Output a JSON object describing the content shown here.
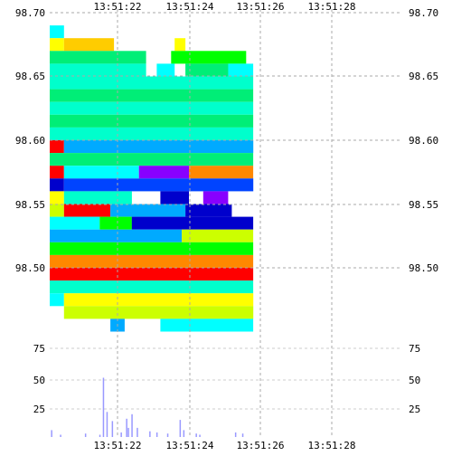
{
  "chart_data": [
    {
      "type": "heatmap",
      "title": "",
      "xlabel": "",
      "ylabel": "",
      "x_ticks": [
        "13:51:22",
        "13:51:24",
        "13:51:26",
        "13:51:28"
      ],
      "y_ticks": [
        "98.70",
        "98.65",
        "98.60",
        "98.55",
        "98.50"
      ],
      "ylim": [
        98.455,
        98.7
      ],
      "xlim_seconds_from_first_tick": [
        -1.9,
        2.0
      ],
      "grid": true,
      "color_scale": [
        "#ff0000",
        "#ff8800",
        "#ffcc00",
        "#ffff00",
        "#ccff00",
        "#00ff00",
        "#00ee77",
        "#00ffcc",
        "#00ffff",
        "#00aaff",
        "#0044ff",
        "#0000cc",
        "#8800ff"
      ],
      "levels": [
        {
          "price": 98.695,
          "segments": []
        },
        {
          "price": 98.685,
          "segments": [
            [
              -1.9,
              -1.5,
              8
            ]
          ]
        },
        {
          "price": 98.675,
          "segments": [
            [
              -1.9,
              -1.5,
              3
            ],
            [
              -1.5,
              -0.1,
              2
            ],
            [
              1.6,
              1.9,
              3
            ]
          ]
        },
        {
          "price": 98.665,
          "segments": [
            [
              -1.9,
              0.8,
              6
            ],
            [
              1.5,
              3.6,
              5
            ]
          ]
        },
        {
          "price": 98.655,
          "segments": [
            [
              -1.9,
              0.8,
              7
            ],
            [
              1.1,
              1.6,
              8
            ],
            [
              1.9,
              3.1,
              6
            ],
            [
              3.1,
              3.8,
              8
            ]
          ]
        },
        {
          "price": 98.645,
          "segments": [
            [
              -1.9,
              3.8,
              7
            ]
          ]
        },
        {
          "price": 98.635,
          "segments": [
            [
              -1.9,
              3.8,
              6
            ]
          ]
        },
        {
          "price": 98.625,
          "segments": [
            [
              -1.9,
              3.8,
              7
            ]
          ]
        },
        {
          "price": 98.615,
          "segments": [
            [
              -1.9,
              3.8,
              6
            ]
          ]
        },
        {
          "price": 98.605,
          "segments": [
            [
              -1.9,
              3.8,
              7
            ]
          ]
        },
        {
          "price": 98.595,
          "segments": [
            [
              -1.9,
              -1.5,
              0
            ],
            [
              -1.5,
              3.8,
              9
            ]
          ]
        },
        {
          "price": 98.585,
          "segments": [
            [
              -1.9,
              3.8,
              6
            ]
          ]
        },
        {
          "price": 98.575,
          "segments": [
            [
              -1.9,
              -1.5,
              0
            ],
            [
              -1.5,
              0.6,
              8
            ],
            [
              0.6,
              2.0,
              12
            ],
            [
              2.0,
              3.8,
              1
            ]
          ]
        },
        {
          "price": 98.565,
          "segments": [
            [
              -1.9,
              -1.5,
              11
            ],
            [
              -1.5,
              3.8,
              10
            ]
          ]
        },
        {
          "price": 98.555,
          "segments": [
            [
              -1.9,
              -1.5,
              3
            ],
            [
              -1.5,
              0.4,
              7
            ],
            [
              1.2,
              2.0,
              11
            ],
            [
              2.4,
              3.1,
              12
            ]
          ]
        },
        {
          "price": 98.545,
          "segments": [
            [
              -1.9,
              -1.5,
              4
            ],
            [
              -1.5,
              -0.2,
              0
            ],
            [
              -0.2,
              1.9,
              9
            ],
            [
              1.9,
              3.2,
              11
            ]
          ]
        },
        {
          "price": 98.535,
          "segments": [
            [
              -1.9,
              -0.5,
              8
            ],
            [
              -0.5,
              0.4,
              5
            ],
            [
              0.4,
              3.8,
              11
            ]
          ]
        },
        {
          "price": 98.525,
          "segments": [
            [
              -1.9,
              1.8,
              9
            ],
            [
              1.8,
              3.8,
              4
            ]
          ]
        },
        {
          "price": 98.515,
          "segments": [
            [
              -1.9,
              3.8,
              5
            ]
          ]
        },
        {
          "price": 98.505,
          "segments": [
            [
              -1.9,
              3.8,
              1
            ]
          ]
        },
        {
          "price": 98.495,
          "segments": [
            [
              -1.9,
              3.8,
              0
            ]
          ]
        },
        {
          "price": 98.485,
          "segments": [
            [
              -1.9,
              3.8,
              7
            ]
          ]
        },
        {
          "price": 98.475,
          "segments": [
            [
              -1.9,
              -1.5,
              8
            ],
            [
              -1.5,
              3.8,
              3
            ]
          ]
        },
        {
          "price": 98.465,
          "segments": [
            [
              -1.5,
              3.8,
              4
            ]
          ]
        },
        {
          "price": 98.455,
          "segments": [
            [
              -0.2,
              0.2,
              9
            ],
            [
              1.2,
              3.8,
              8
            ]
          ]
        }
      ]
    },
    {
      "type": "bar",
      "title": "",
      "xlabel": "",
      "ylabel": "",
      "y_ticks": [
        "75",
        "50",
        "25"
      ],
      "ylim": [
        0,
        80
      ],
      "x_ticks": [
        "13:51:22",
        "13:51:24",
        "13:51:26",
        "13:51:28"
      ],
      "x_seconds_from_first_tick": [
        -1.85,
        -1.6,
        -0.9,
        -0.5,
        -0.4,
        -0.3,
        -0.15,
        0.1,
        0.25,
        0.3,
        0.4,
        0.55,
        0.9,
        1.1,
        1.4,
        1.75,
        1.85,
        2.2,
        2.3,
        3.3,
        3.5
      ],
      "values": [
        6,
        2,
        3,
        2,
        52,
        22,
        14,
        4,
        16,
        8,
        20,
        8,
        5,
        4,
        3,
        15,
        6,
        3,
        2,
        4,
        3
      ],
      "bar_color": "#9999ff"
    }
  ]
}
